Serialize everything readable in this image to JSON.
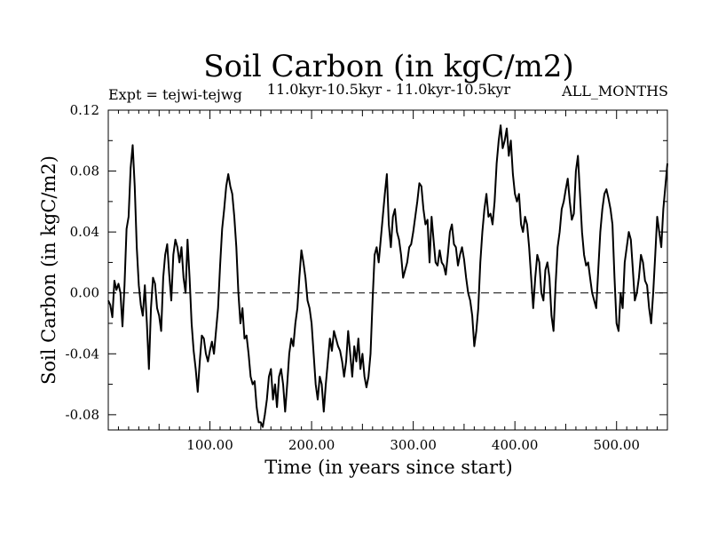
{
  "chart_data": {
    "type": "line",
    "title": "Soil Carbon (in kgC/m2)",
    "subtitle_left": "Expt = tejwi-tejwg",
    "subtitle_center": "11.0kyr-10.5kyr - 11.0kyr-10.5kyr",
    "subtitle_right": "ALL_MONTHS",
    "xlabel": "Time (in years since start)",
    "ylabel": "Soil Carbon (in kgC/m2)",
    "xlim": [
      0,
      550
    ],
    "ylim": [
      -0.09,
      0.12
    ],
    "xticks": [
      {
        "value": 100,
        "label": "100.00"
      },
      {
        "value": 200,
        "label": "200.00"
      },
      {
        "value": 300,
        "label": "300.00"
      },
      {
        "value": 400,
        "label": "400.00"
      },
      {
        "value": 500,
        "label": "500.00"
      }
    ],
    "yticks": [
      {
        "value": 0.12,
        "label": "0.12"
      },
      {
        "value": 0.08,
        "label": "0.08"
      },
      {
        "value": 0.04,
        "label": "0.04"
      },
      {
        "value": 0.0,
        "label": "0.00"
      },
      {
        "value": -0.04,
        "label": "-0.04"
      },
      {
        "value": -0.08,
        "label": "-0.08"
      }
    ],
    "reference_line": {
      "y": 0.0,
      "style": "dashed"
    },
    "series": [
      {
        "name": "Soil Carbon",
        "color": "#000000",
        "points": [
          [
            0,
            -0.005
          ],
          [
            2,
            -0.008
          ],
          [
            4,
            -0.016
          ],
          [
            6,
            0.008
          ],
          [
            8,
            0.002
          ],
          [
            10,
            0.006
          ],
          [
            12,
            0.0
          ],
          [
            14,
            -0.022
          ],
          [
            16,
            0.005
          ],
          [
            18,
            0.042
          ],
          [
            20,
            0.05
          ],
          [
            22,
            0.082
          ],
          [
            24,
            0.097
          ],
          [
            26,
            0.07
          ],
          [
            28,
            0.03
          ],
          [
            30,
            0.005
          ],
          [
            32,
            -0.008
          ],
          [
            34,
            -0.015
          ],
          [
            36,
            0.005
          ],
          [
            38,
            -0.02
          ],
          [
            40,
            -0.05
          ],
          [
            42,
            -0.01
          ],
          [
            44,
            0.01
          ],
          [
            46,
            0.006
          ],
          [
            48,
            -0.01
          ],
          [
            50,
            -0.015
          ],
          [
            52,
            -0.025
          ],
          [
            54,
            0.01
          ],
          [
            56,
            0.025
          ],
          [
            58,
            0.032
          ],
          [
            60,
            0.012
          ],
          [
            62,
            -0.005
          ],
          [
            64,
            0.025
          ],
          [
            66,
            0.035
          ],
          [
            68,
            0.03
          ],
          [
            70,
            0.02
          ],
          [
            72,
            0.03
          ],
          [
            74,
            0.01
          ],
          [
            76,
            0.0
          ],
          [
            78,
            0.035
          ],
          [
            80,
            0.01
          ],
          [
            82,
            -0.02
          ],
          [
            84,
            -0.038
          ],
          [
            86,
            -0.05
          ],
          [
            88,
            -0.065
          ],
          [
            90,
            -0.045
          ],
          [
            92,
            -0.028
          ],
          [
            94,
            -0.03
          ],
          [
            96,
            -0.04
          ],
          [
            98,
            -0.045
          ],
          [
            100,
            -0.038
          ],
          [
            102,
            -0.032
          ],
          [
            104,
            -0.04
          ],
          [
            106,
            -0.025
          ],
          [
            108,
            -0.01
          ],
          [
            110,
            0.018
          ],
          [
            112,
            0.042
          ],
          [
            114,
            0.055
          ],
          [
            116,
            0.07
          ],
          [
            118,
            0.078
          ],
          [
            120,
            0.07
          ],
          [
            122,
            0.065
          ],
          [
            124,
            0.05
          ],
          [
            126,
            0.03
          ],
          [
            128,
            0.0
          ],
          [
            130,
            -0.02
          ],
          [
            132,
            -0.01
          ],
          [
            134,
            -0.03
          ],
          [
            136,
            -0.028
          ],
          [
            138,
            -0.04
          ],
          [
            140,
            -0.055
          ],
          [
            142,
            -0.06
          ],
          [
            144,
            -0.058
          ],
          [
            146,
            -0.075
          ],
          [
            148,
            -0.085
          ],
          [
            150,
            -0.085
          ],
          [
            152,
            -0.088
          ],
          [
            154,
            -0.08
          ],
          [
            156,
            -0.07
          ],
          [
            158,
            -0.055
          ],
          [
            160,
            -0.05
          ],
          [
            162,
            -0.07
          ],
          [
            164,
            -0.06
          ],
          [
            166,
            -0.075
          ],
          [
            168,
            -0.055
          ],
          [
            170,
            -0.05
          ],
          [
            172,
            -0.06
          ],
          [
            174,
            -0.078
          ],
          [
            176,
            -0.06
          ],
          [
            178,
            -0.04
          ],
          [
            180,
            -0.03
          ],
          [
            182,
            -0.035
          ],
          [
            184,
            -0.02
          ],
          [
            186,
            -0.01
          ],
          [
            188,
            0.01
          ],
          [
            190,
            0.028
          ],
          [
            192,
            0.02
          ],
          [
            194,
            0.01
          ],
          [
            196,
            -0.005
          ],
          [
            198,
            -0.01
          ],
          [
            200,
            -0.02
          ],
          [
            202,
            -0.04
          ],
          [
            204,
            -0.06
          ],
          [
            206,
            -0.07
          ],
          [
            208,
            -0.055
          ],
          [
            210,
            -0.06
          ],
          [
            212,
            -0.078
          ],
          [
            214,
            -0.06
          ],
          [
            216,
            -0.045
          ],
          [
            218,
            -0.03
          ],
          [
            220,
            -0.038
          ],
          [
            222,
            -0.025
          ],
          [
            224,
            -0.03
          ],
          [
            226,
            -0.035
          ],
          [
            228,
            -0.038
          ],
          [
            230,
            -0.045
          ],
          [
            232,
            -0.055
          ],
          [
            234,
            -0.045
          ],
          [
            236,
            -0.025
          ],
          [
            238,
            -0.04
          ],
          [
            240,
            -0.055
          ],
          [
            242,
            -0.035
          ],
          [
            244,
            -0.045
          ],
          [
            246,
            -0.03
          ],
          [
            248,
            -0.05
          ],
          [
            250,
            -0.04
          ],
          [
            252,
            -0.055
          ],
          [
            254,
            -0.062
          ],
          [
            256,
            -0.055
          ],
          [
            258,
            -0.04
          ],
          [
            260,
            -0.005
          ],
          [
            262,
            0.025
          ],
          [
            264,
            0.03
          ],
          [
            266,
            0.02
          ],
          [
            268,
            0.035
          ],
          [
            270,
            0.05
          ],
          [
            272,
            0.065
          ],
          [
            274,
            0.078
          ],
          [
            276,
            0.045
          ],
          [
            278,
            0.03
          ],
          [
            280,
            0.05
          ],
          [
            282,
            0.055
          ],
          [
            284,
            0.04
          ],
          [
            286,
            0.035
          ],
          [
            288,
            0.025
          ],
          [
            290,
            0.01
          ],
          [
            292,
            0.015
          ],
          [
            294,
            0.02
          ],
          [
            296,
            0.03
          ],
          [
            298,
            0.032
          ],
          [
            300,
            0.04
          ],
          [
            302,
            0.05
          ],
          [
            304,
            0.06
          ],
          [
            306,
            0.072
          ],
          [
            308,
            0.07
          ],
          [
            310,
            0.055
          ],
          [
            312,
            0.045
          ],
          [
            314,
            0.048
          ],
          [
            316,
            0.02
          ],
          [
            318,
            0.05
          ],
          [
            320,
            0.035
          ],
          [
            322,
            0.02
          ],
          [
            324,
            0.018
          ],
          [
            326,
            0.028
          ],
          [
            328,
            0.02
          ],
          [
            330,
            0.018
          ],
          [
            332,
            0.012
          ],
          [
            334,
            0.025
          ],
          [
            336,
            0.04
          ],
          [
            338,
            0.045
          ],
          [
            340,
            0.032
          ],
          [
            342,
            0.03
          ],
          [
            344,
            0.018
          ],
          [
            346,
            0.025
          ],
          [
            348,
            0.03
          ],
          [
            350,
            0.022
          ],
          [
            352,
            0.01
          ],
          [
            354,
            0.0
          ],
          [
            356,
            -0.005
          ],
          [
            358,
            -0.015
          ],
          [
            360,
            -0.035
          ],
          [
            362,
            -0.025
          ],
          [
            364,
            -0.01
          ],
          [
            366,
            0.02
          ],
          [
            368,
            0.04
          ],
          [
            370,
            0.055
          ],
          [
            372,
            0.065
          ],
          [
            374,
            0.05
          ],
          [
            376,
            0.052
          ],
          [
            378,
            0.045
          ],
          [
            380,
            0.06
          ],
          [
            382,
            0.085
          ],
          [
            384,
            0.1
          ],
          [
            386,
            0.11
          ],
          [
            388,
            0.095
          ],
          [
            390,
            0.1
          ],
          [
            392,
            0.108
          ],
          [
            394,
            0.09
          ],
          [
            396,
            0.1
          ],
          [
            398,
            0.078
          ],
          [
            400,
            0.065
          ],
          [
            402,
            0.06
          ],
          [
            404,
            0.065
          ],
          [
            406,
            0.045
          ],
          [
            408,
            0.04
          ],
          [
            410,
            0.05
          ],
          [
            412,
            0.045
          ],
          [
            414,
            0.03
          ],
          [
            416,
            0.01
          ],
          [
            418,
            -0.01
          ],
          [
            420,
            0.01
          ],
          [
            422,
            0.025
          ],
          [
            424,
            0.02
          ],
          [
            426,
            0.0
          ],
          [
            428,
            -0.005
          ],
          [
            430,
            0.015
          ],
          [
            432,
            0.02
          ],
          [
            434,
            0.01
          ],
          [
            436,
            -0.015
          ],
          [
            438,
            -0.025
          ],
          [
            440,
            0.005
          ],
          [
            442,
            0.03
          ],
          [
            444,
            0.04
          ],
          [
            446,
            0.055
          ],
          [
            448,
            0.06
          ],
          [
            450,
            0.068
          ],
          [
            452,
            0.075
          ],
          [
            454,
            0.06
          ],
          [
            456,
            0.048
          ],
          [
            458,
            0.052
          ],
          [
            460,
            0.08
          ],
          [
            462,
            0.09
          ],
          [
            464,
            0.065
          ],
          [
            466,
            0.04
          ],
          [
            468,
            0.025
          ],
          [
            470,
            0.018
          ],
          [
            472,
            0.02
          ],
          [
            474,
            0.01
          ],
          [
            476,
            0.0
          ],
          [
            478,
            -0.005
          ],
          [
            480,
            -0.01
          ],
          [
            482,
            0.015
          ],
          [
            484,
            0.04
          ],
          [
            486,
            0.055
          ],
          [
            488,
            0.065
          ],
          [
            490,
            0.068
          ],
          [
            492,
            0.062
          ],
          [
            494,
            0.055
          ],
          [
            496,
            0.045
          ],
          [
            498,
            0.01
          ],
          [
            500,
            -0.02
          ],
          [
            502,
            -0.025
          ],
          [
            504,
            0.0
          ],
          [
            506,
            -0.01
          ],
          [
            508,
            0.02
          ],
          [
            510,
            0.03
          ],
          [
            512,
            0.04
          ],
          [
            514,
            0.035
          ],
          [
            516,
            0.015
          ],
          [
            518,
            -0.005
          ],
          [
            520,
            0.0
          ],
          [
            522,
            0.01
          ],
          [
            524,
            0.025
          ],
          [
            526,
            0.02
          ],
          [
            528,
            0.008
          ],
          [
            530,
            0.005
          ],
          [
            532,
            -0.01
          ],
          [
            534,
            -0.02
          ],
          [
            536,
            0.0
          ],
          [
            538,
            0.025
          ],
          [
            540,
            0.05
          ],
          [
            542,
            0.04
          ],
          [
            544,
            0.03
          ],
          [
            546,
            0.055
          ],
          [
            548,
            0.07
          ],
          [
            550,
            0.085
          ]
        ]
      }
    ]
  }
}
